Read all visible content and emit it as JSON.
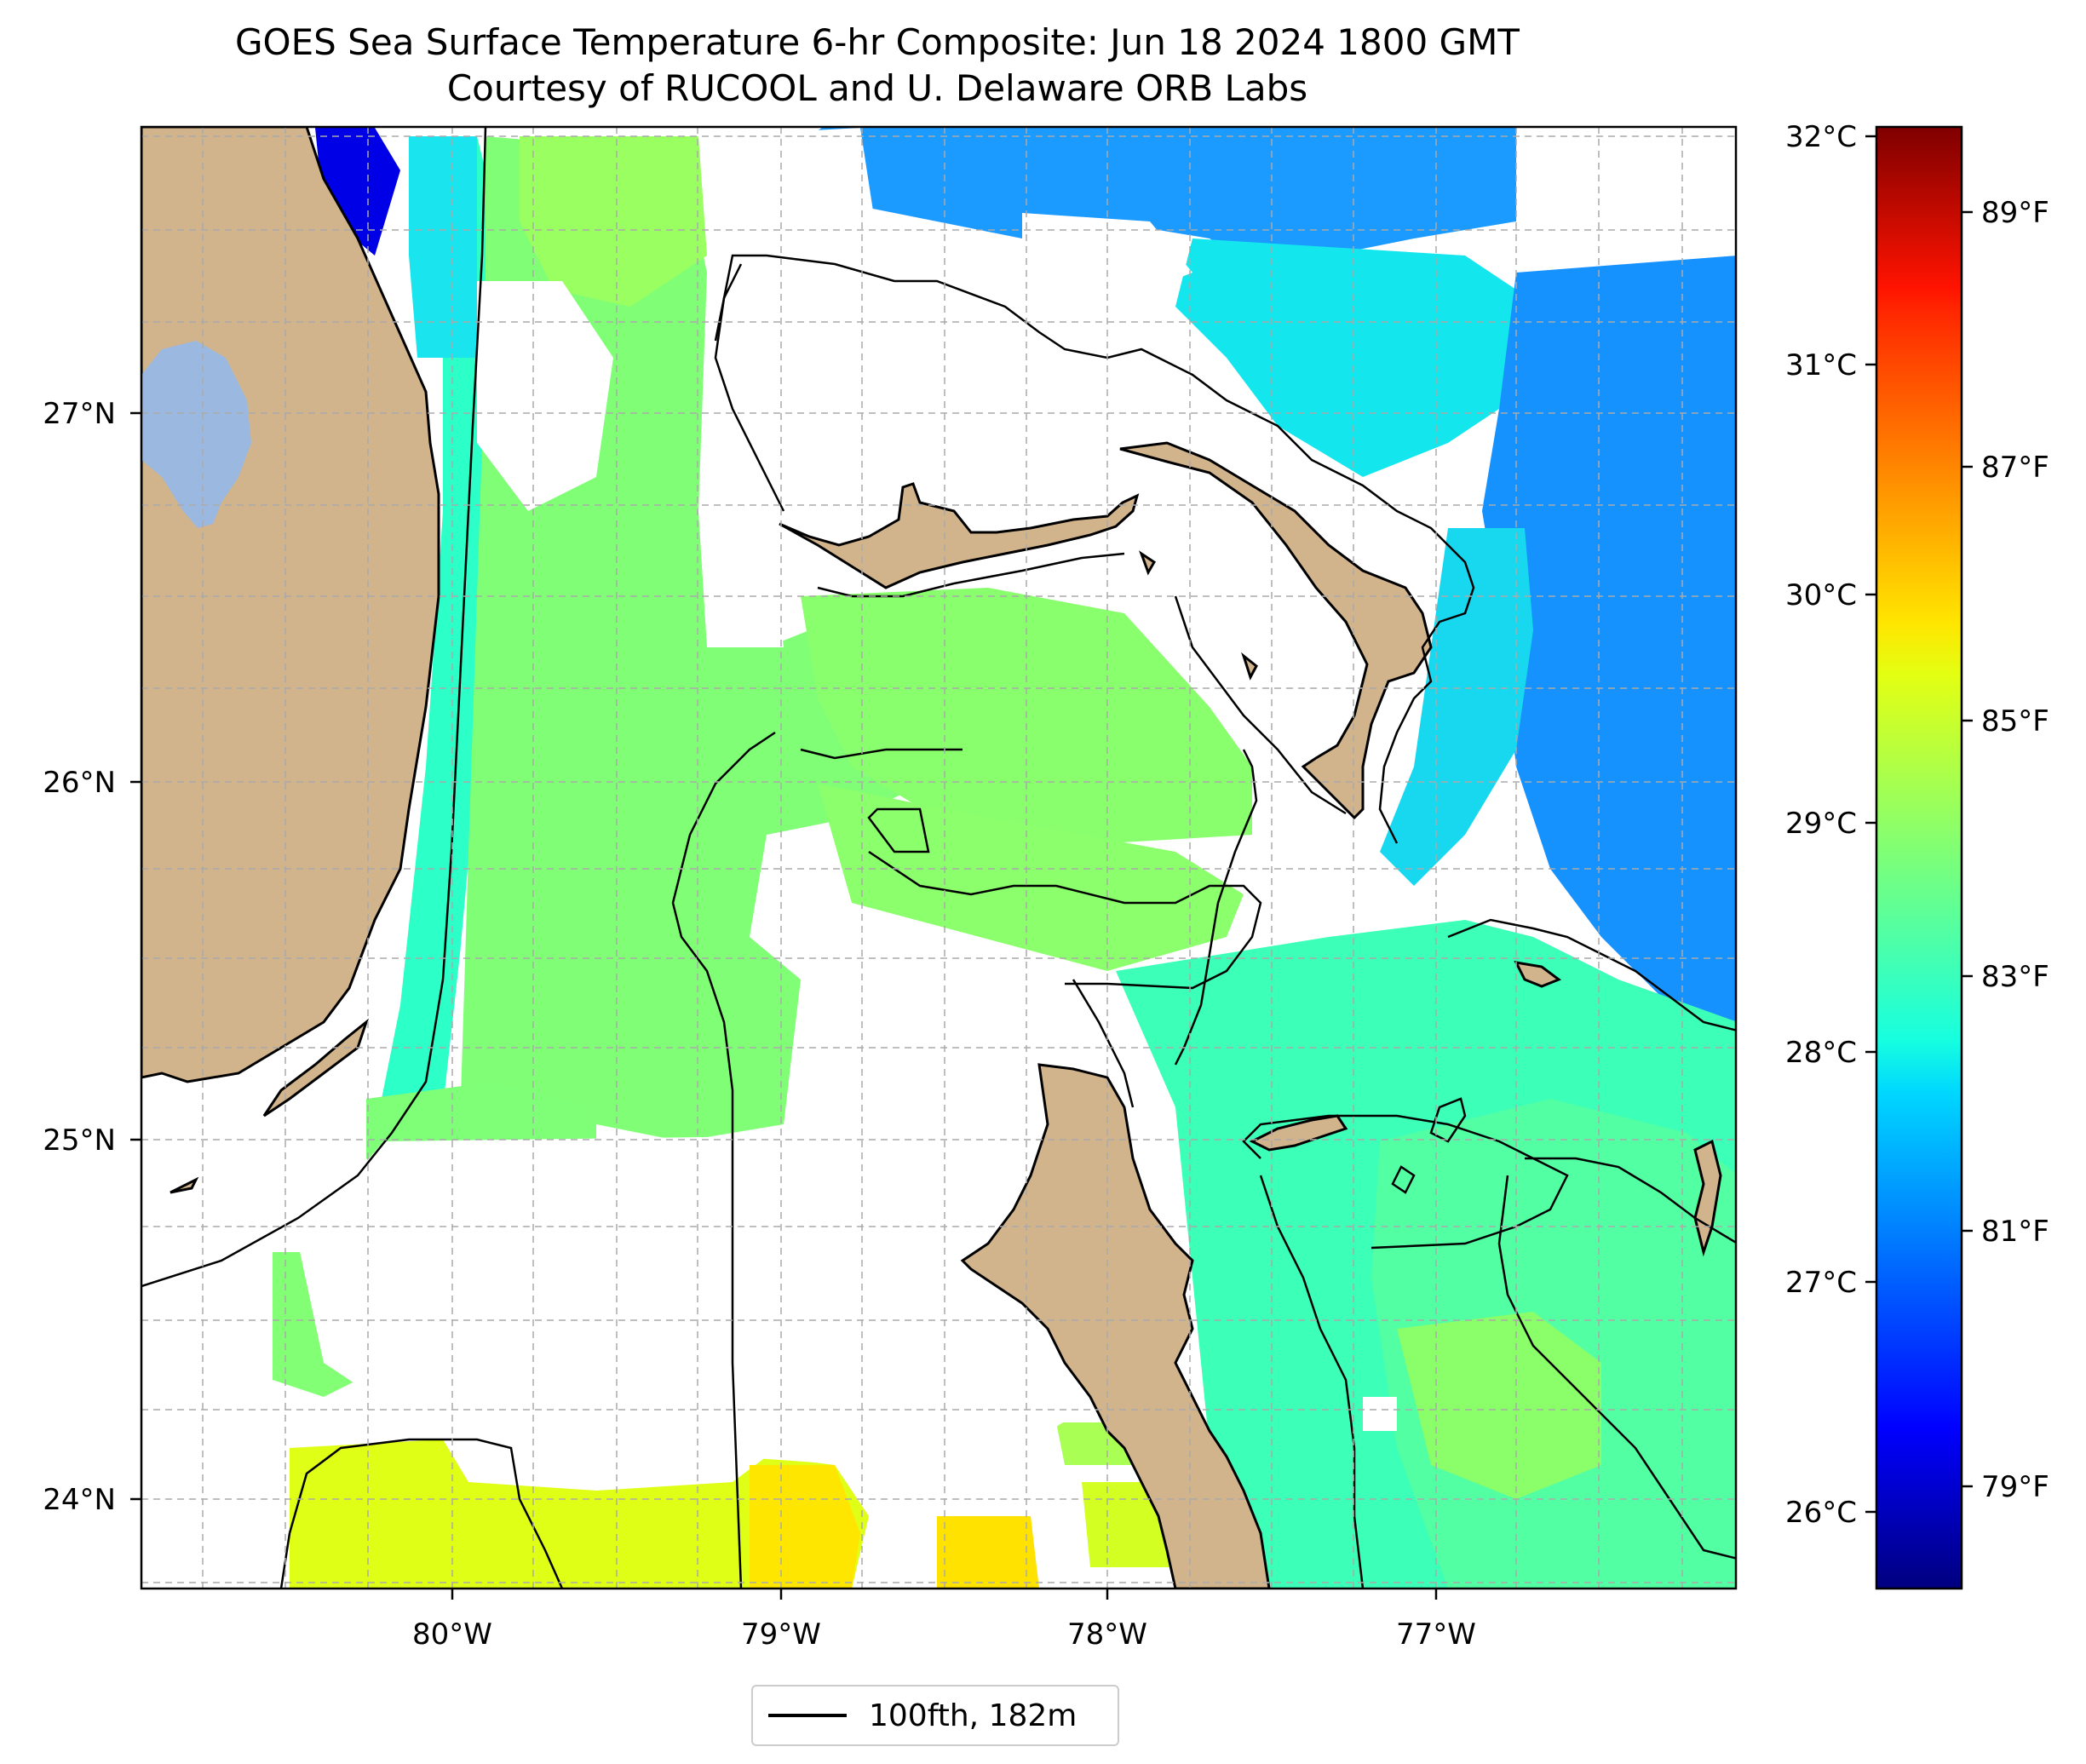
{
  "title": "GOES Sea Surface Temperature 6-hr Composite: Jun 18 2024 1800 GMT",
  "subtitle": "Courtesy of RUCOOL and U. Delaware ORB Labs",
  "map": {
    "lon_labels": [
      "80°W",
      "79°W",
      "78°W",
      "77°W"
    ],
    "lat_labels": [
      "27°N",
      "26°N",
      "25°N",
      "24°N"
    ],
    "gridlines": true,
    "colors": {
      "land": "#d2b48c",
      "lake": "#9ab8e0",
      "no_data": "#ffffff",
      "contour": "#000000"
    }
  },
  "colorbar": {
    "celsius_labels": [
      "32°C",
      "31°C",
      "30°C",
      "29°C",
      "28°C",
      "27°C",
      "26°C"
    ],
    "fahrenheit_labels": [
      "89°F",
      "87°F",
      "85°F",
      "83°F",
      "81°F",
      "79°F"
    ],
    "colormap": "jet"
  },
  "legend": {
    "label": "100fth, 182m"
  }
}
